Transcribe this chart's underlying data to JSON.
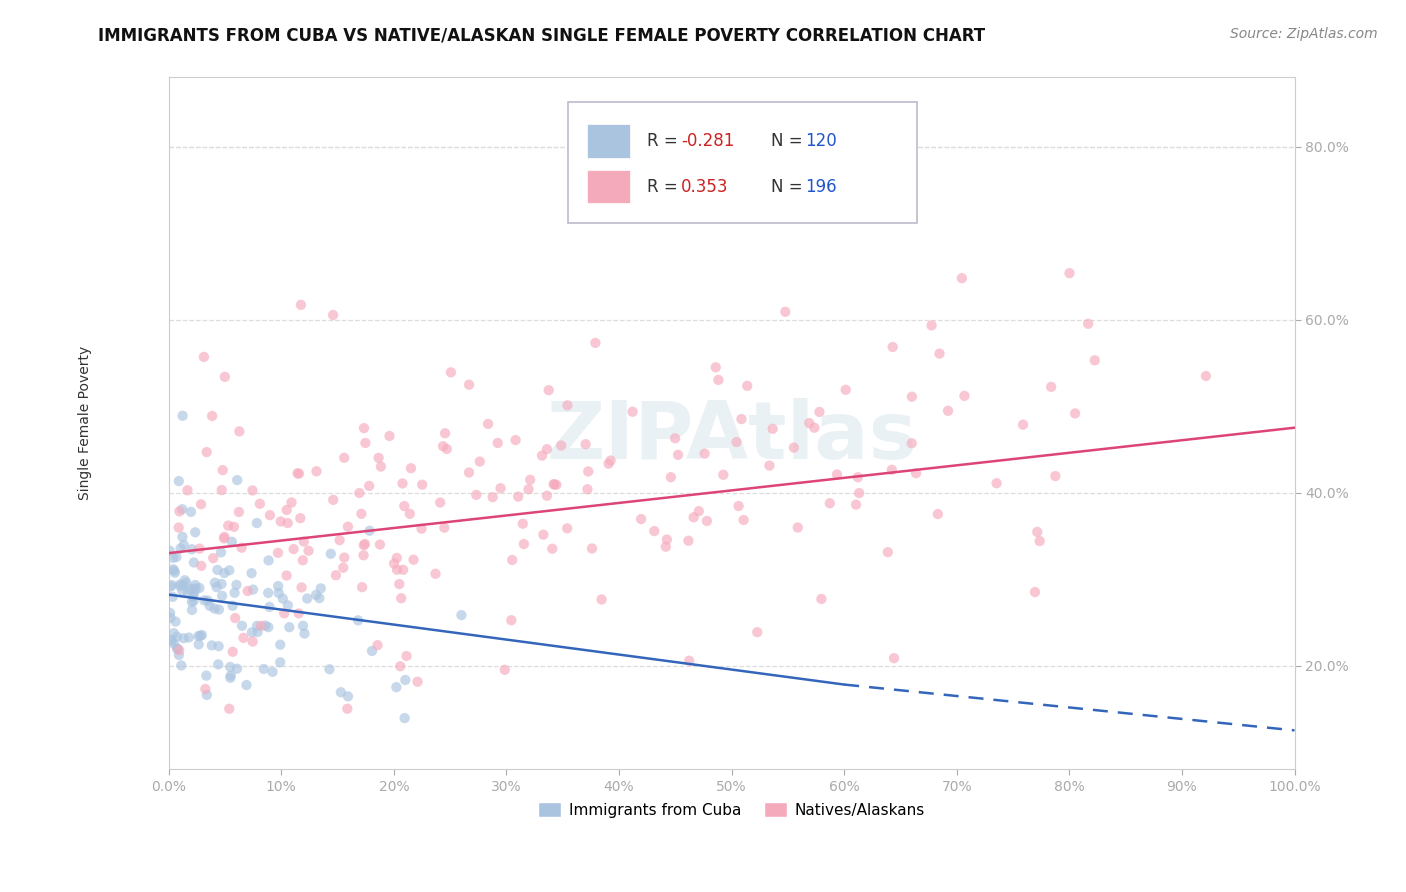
{
  "title": "IMMIGRANTS FROM CUBA VS NATIVE/ALASKAN SINGLE FEMALE POVERTY CORRELATION CHART",
  "source": "Source: ZipAtlas.com",
  "ylabel": "Single Female Poverty",
  "xlim": [
    0.0,
    1.0
  ],
  "ylim": [
    0.08,
    0.88
  ],
  "blue_R": -0.281,
  "blue_N": 120,
  "pink_R": 0.353,
  "pink_N": 196,
  "blue_color": "#aac4e0",
  "pink_color": "#f5aabc",
  "blue_line_color": "#3366bb",
  "pink_line_color": "#dd4477",
  "bg_color": "#ffffff",
  "grid_color": "#dddddd",
  "blue_trend": [
    0.0,
    0.6,
    1.0
  ],
  "blue_trend_y": [
    0.282,
    0.178,
    0.125
  ],
  "pink_trend": [
    0.0,
    1.0
  ],
  "pink_trend_y": [
    0.33,
    0.475
  ],
  "yticks": [
    0.2,
    0.4,
    0.6,
    0.8
  ],
  "xticks": [
    0.0,
    0.1,
    0.2,
    0.3,
    0.4,
    0.5,
    0.6,
    0.7,
    0.8,
    0.9,
    1.0
  ],
  "title_fontsize": 12,
  "axis_label_fontsize": 10,
  "tick_fontsize": 10,
  "legend_fontsize": 12,
  "source_fontsize": 10,
  "blue_seed": 42,
  "pink_seed": 99
}
